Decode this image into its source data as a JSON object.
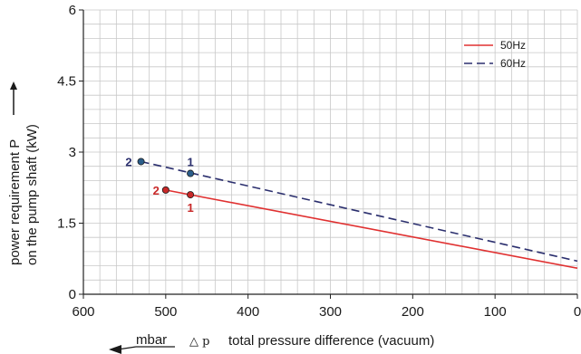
{
  "chart_data": {
    "type": "line",
    "xlabel_unit": "mbar",
    "xlabel_symbol": "△ p",
    "xlabel": "total pressure difference (vacuum)",
    "ylabel_line1": "power requirement P",
    "ylabel_line2": "on the pump shaft (kW)",
    "xlim": [
      600,
      0
    ],
    "ylim": [
      0,
      6
    ],
    "x_ticks": [
      600,
      500,
      400,
      300,
      200,
      100,
      0
    ],
    "y_ticks": [
      0,
      1.5,
      3,
      4.5,
      6
    ],
    "y_tick_labels": [
      "0",
      "1.5",
      "3",
      "4.5",
      "6"
    ],
    "grid": true,
    "legend_position": "top-right",
    "series": [
      {
        "name": "50Hz",
        "color": "#e03030",
        "style": "solid",
        "x": [
          470,
          0
        ],
        "y": [
          2.1,
          0.55
        ],
        "markers": [
          {
            "x": 500,
            "y": 2.2,
            "label": "2"
          },
          {
            "x": 470,
            "y": 2.1,
            "label": "1"
          }
        ],
        "segment_between_markers": true
      },
      {
        "name": "60Hz",
        "color": "#2b2f6e",
        "style": "dashed",
        "x": [
          530,
          0
        ],
        "y": [
          2.8,
          0.7
        ],
        "markers": [
          {
            "x": 530,
            "y": 2.8,
            "label": "2"
          },
          {
            "x": 470,
            "y": 2.55,
            "label": "1"
          }
        ]
      }
    ]
  }
}
